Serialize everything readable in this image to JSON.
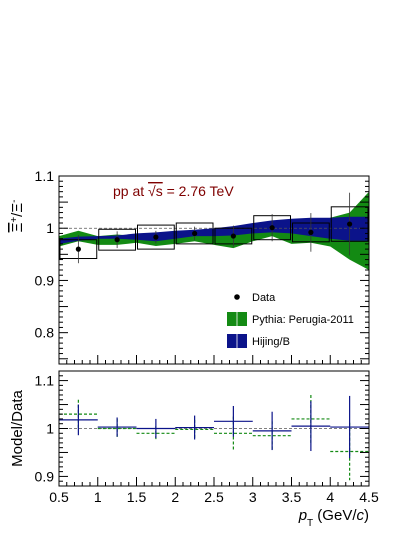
{
  "chart_data": [
    {
      "type": "scatter",
      "panel": "ratio",
      "ylabel_parts": [
        "Ξ",
        "+",
        "/",
        "Ξ",
        "-"
      ],
      "ylim": [
        0.74,
        1.1
      ],
      "xlim": [
        0.5,
        4.5
      ],
      "yticks": [
        0.8,
        0.9,
        1.0,
        1.1
      ],
      "ytick_labels": [
        "0.8",
        "0.9",
        "1",
        "1.1"
      ],
      "annotation": {
        "prefix": "pp at ",
        "sqrt": "√s",
        "suffix": " = 2.76 TeV"
      },
      "colors": {
        "annotation": "#7f0000",
        "pythia": "#138a13",
        "hijing": "#0b138a",
        "data": "#000000"
      },
      "legend": {
        "placement": "center-right",
        "entries": [
          {
            "label": "Data",
            "kind": "marker"
          },
          {
            "label": "Pythia: Perugia-2011",
            "kind": "band-green"
          },
          {
            "label": "Hijing/B",
            "kind": "band-blue"
          }
        ]
      },
      "series": [
        {
          "name": "Data",
          "x": [
            0.75,
            1.25,
            1.75,
            2.25,
            2.75,
            3.25,
            3.75,
            4.25
          ],
          "y": [
            0.96,
            0.978,
            0.983,
            0.99,
            0.985,
            1.001,
            0.992,
            1.008
          ],
          "stat_err": [
            0.027,
            0.016,
            0.012,
            0.013,
            0.02,
            0.026,
            0.037,
            0.06
          ],
          "sys_err": [
            0.018,
            0.02,
            0.023,
            0.02,
            0.015,
            0.023,
            0.018,
            0.033
          ]
        },
        {
          "name": "Pythia: Perugia-2011",
          "x": [
            0.5,
            0.75,
            1.0,
            1.25,
            1.5,
            1.75,
            2.0,
            2.25,
            2.5,
            2.75,
            3.0,
            3.25,
            3.5,
            3.75,
            4.0,
            4.25,
            4.5
          ],
          "lo": [
            0.965,
            0.975,
            0.968,
            0.968,
            0.972,
            0.966,
            0.97,
            0.975,
            0.968,
            0.962,
            0.975,
            0.985,
            0.97,
            0.972,
            0.965,
            0.94,
            0.92
          ],
          "hi": [
            0.985,
            0.995,
            0.985,
            0.988,
            0.985,
            0.984,
            0.99,
            0.993,
            0.99,
            0.99,
            1.0,
            1.012,
            1.002,
            0.998,
            1.02,
            1.03,
            1.07
          ]
        },
        {
          "name": "Hijing/B",
          "x": [
            0.5,
            0.75,
            1.0,
            1.25,
            1.5,
            1.75,
            2.0,
            2.25,
            2.5,
            2.75,
            3.0,
            3.25,
            3.5,
            3.75,
            4.0,
            4.25,
            4.5
          ],
          "lo": [
            0.97,
            0.976,
            0.98,
            0.98,
            0.978,
            0.975,
            0.98,
            0.985,
            0.985,
            0.986,
            0.99,
            0.992,
            0.99,
            0.985,
            0.98,
            0.976,
            0.976
          ],
          "hi": [
            0.98,
            0.984,
            0.985,
            0.986,
            0.99,
            0.992,
            0.995,
            0.997,
            1.0,
            1.004,
            1.01,
            1.015,
            1.018,
            1.02,
            1.02,
            1.022,
            1.022
          ]
        }
      ]
    },
    {
      "type": "scatter",
      "panel": "model-over-data",
      "ylabel": "Model/Data",
      "xlabel_parts": [
        "p",
        "T",
        " (GeV/",
        "c",
        ")"
      ],
      "xlim": [
        0.5,
        4.5
      ],
      "ylim": [
        0.88,
        1.12
      ],
      "xticks": [
        0.5,
        1.0,
        1.5,
        2.0,
        2.5,
        3.0,
        3.5,
        4.0,
        4.5
      ],
      "xtick_labels": [
        "0.5",
        "1",
        "1.5",
        "2",
        "2.5",
        "3",
        "3.5",
        "4",
        "4.5"
      ],
      "yticks": [
        0.9,
        1.0,
        1.1
      ],
      "ytick_labels": [
        "0.9",
        "1",
        "1.1"
      ],
      "colors": {
        "pythia": "#138a13",
        "hijing": "#0b138a"
      },
      "series": [
        {
          "name": "Pythia: Perugia-2011",
          "x": [
            0.75,
            1.25,
            1.75,
            2.25,
            2.75,
            3.25,
            3.75,
            4.25
          ],
          "y": [
            1.03,
            1.0,
            0.99,
            0.998,
            0.99,
            0.985,
            1.02,
            0.952
          ],
          "err": [
            0.03,
            0.02,
            0.015,
            0.02,
            0.035,
            0.03,
            0.05,
            0.06
          ]
        },
        {
          "name": "Hijing/B",
          "x": [
            0.75,
            1.25,
            1.75,
            2.25,
            2.75,
            3.25,
            3.75,
            4.25
          ],
          "y": [
            1.018,
            1.003,
            1.0,
            1.002,
            1.015,
            0.995,
            1.005,
            1.003
          ],
          "err": [
            0.032,
            0.02,
            0.02,
            0.025,
            0.032,
            0.04,
            0.052,
            0.065
          ]
        }
      ]
    }
  ]
}
